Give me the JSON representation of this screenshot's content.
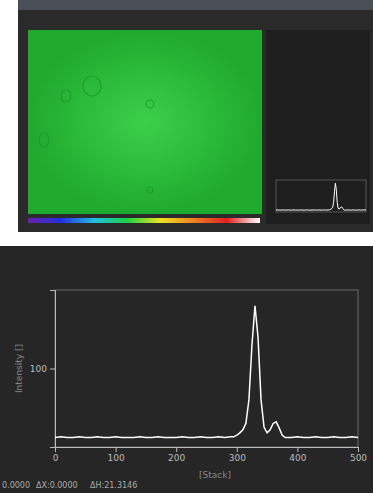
{
  "chart_data": {
    "type": "line",
    "y_label": "Intensity []",
    "x_label": "[Stack]",
    "annotations": [
      "0.0000",
      "ΔX:0.0000",
      "ΔH:21.3146"
    ],
    "x": [
      0,
      10,
      20,
      30,
      40,
      50,
      60,
      70,
      80,
      90,
      100,
      110,
      120,
      130,
      140,
      150,
      160,
      170,
      180,
      190,
      200,
      210,
      220,
      230,
      240,
      250,
      260,
      270,
      280,
      290,
      295,
      300,
      305,
      310,
      315,
      320,
      325,
      330,
      335,
      340,
      345,
      350,
      355,
      360,
      365,
      370,
      375,
      380,
      390,
      400,
      410,
      420,
      430,
      440,
      450,
      460,
      470,
      480,
      490,
      500
    ],
    "series": [
      {
        "name": "Intensity",
        "color": "#ffffff",
        "values": [
          12,
          13,
          12,
          12,
          13,
          12,
          12,
          13,
          12,
          12,
          13,
          12,
          12,
          12,
          13,
          12,
          12,
          13,
          12,
          12,
          12,
          13,
          12,
          12,
          13,
          12,
          12,
          13,
          12,
          13,
          13,
          15,
          18,
          22,
          30,
          60,
          130,
          180,
          140,
          60,
          25,
          18,
          22,
          30,
          32,
          24,
          15,
          12,
          12,
          13,
          12,
          12,
          13,
          12,
          12,
          13,
          12,
          12,
          13,
          12
        ]
      }
    ],
    "xlim": [
      0,
      500
    ],
    "xticks": [
      0,
      100,
      200,
      300,
      400,
      500
    ],
    "ylim": [
      0,
      200
    ],
    "yticks": [
      100
    ],
    "grid": false
  }
}
